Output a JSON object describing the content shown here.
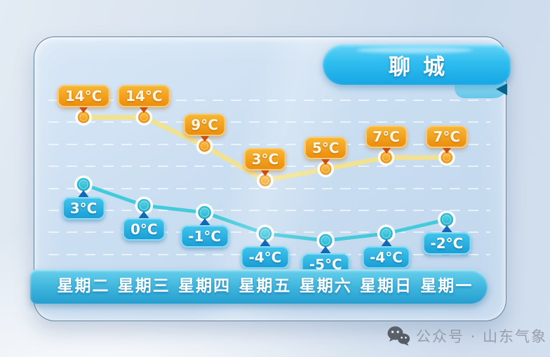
{
  "title_badge": {
    "label": "聊城"
  },
  "chart_data": {
    "type": "line",
    "title": "聊城",
    "categories": [
      "星期二",
      "星期三",
      "星期四",
      "星期五",
      "星期六",
      "星期日",
      "星期一"
    ],
    "series": [
      {
        "name": "high-temperature",
        "values": [
          14,
          14,
          9,
          3,
          5,
          7,
          7
        ],
        "labels": [
          "14°C",
          "14°C",
          "9°C",
          "3°C",
          "5°C",
          "7°C",
          "7°C"
        ],
        "color": "#f2e18c"
      },
      {
        "name": "low-temperature",
        "values": [
          3,
          0,
          -1,
          -4,
          -5,
          -4,
          -2
        ],
        "labels": [
          "3°C",
          "0°C",
          "-1°C",
          "-4°C",
          "-5°C",
          "-4°C",
          "-2°C"
        ],
        "color": "#3cc9d9"
      }
    ],
    "unit": "°C",
    "ylim": [
      -5,
      14
    ],
    "grid": "dashed-horizontal-white",
    "legend": "none"
  },
  "colors": {
    "high_line": "#f2e18c",
    "low_line": "#3cc9d9",
    "high_marker": "#ef9712",
    "low_marker": "#27b4cf",
    "high_badge_top": "#f7b733",
    "high_badge_bottom": "#ec8d0d",
    "high_pointer": "#d6491a",
    "low_badge_top": "#41c3ea",
    "low_badge_bottom": "#1a9fd6",
    "low_pointer": "#1568b4",
    "banner_blue": "#17a6e4",
    "daybar_blue": "#2aa3d2"
  },
  "watermark": {
    "label": "公众号 · 山东气象",
    "icon": "wechat-icon"
  }
}
